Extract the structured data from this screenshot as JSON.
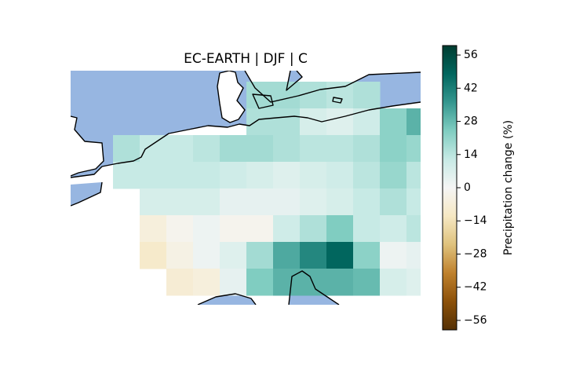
{
  "chart_data": {
    "type": "heatmap",
    "title": "EC-EARTH | DJF | C",
    "colorbar": {
      "label": "Precipitation change (%)",
      "min": -60,
      "max": 60,
      "ticks": [
        -56,
        -42,
        -28,
        -14,
        0,
        14,
        28,
        42,
        56
      ],
      "tick_labels": [
        "−56",
        "−42",
        "−28",
        "−14",
        "0",
        "14",
        "28",
        "42",
        "56"
      ],
      "colormap": "BrBG"
    },
    "grid_values": [
      [
        null,
        null,
        null,
        null,
        null,
        null,
        18,
        18,
        16,
        14,
        16,
        null,
        null
      ],
      [
        null,
        null,
        null,
        null,
        null,
        null,
        16,
        16,
        8,
        6,
        10,
        22,
        30
      ],
      [
        null,
        16,
        12,
        12,
        14,
        18,
        18,
        16,
        14,
        14,
        16,
        22,
        20
      ],
      [
        null,
        12,
        12,
        12,
        12,
        10,
        8,
        6,
        8,
        10,
        14,
        20,
        14
      ],
      [
        null,
        null,
        8,
        8,
        8,
        4,
        4,
        4,
        6,
        8,
        12,
        16,
        12
      ],
      [
        null,
        null,
        -6,
        -2,
        2,
        -2,
        -2,
        10,
        16,
        24,
        12,
        10,
        14
      ],
      [
        null,
        null,
        -10,
        -4,
        2,
        6,
        18,
        32,
        40,
        48,
        22,
        2,
        4
      ],
      [
        null,
        null,
        null,
        -8,
        -6,
        4,
        24,
        30,
        30,
        30,
        28,
        8,
        6
      ]
    ],
    "ocean_color": "#97b6e1",
    "grid": false
  }
}
